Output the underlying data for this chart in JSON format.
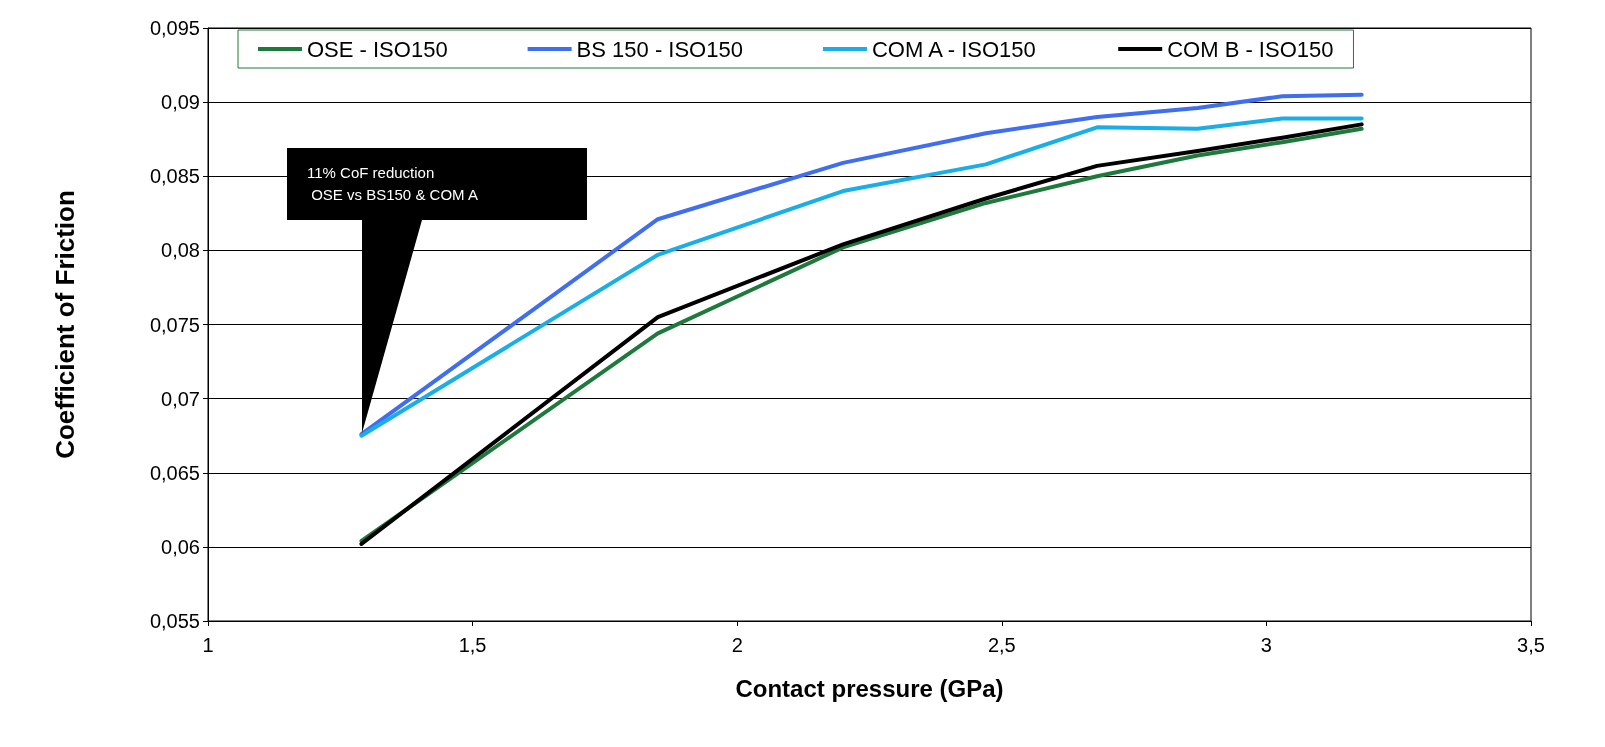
{
  "chart_data": {
    "type": "line",
    "xlabel": "Contact pressure (GPa)",
    "ylabel": "Coefficient of Friction",
    "x": [
      1.29,
      1.85,
      2.2,
      2.47,
      2.68,
      2.87,
      3.03,
      3.18
    ],
    "series": [
      {
        "name": "OSE - ISO150",
        "color": "#1e7a3c",
        "values": [
          0.0604,
          0.0744,
          0.0802,
          0.0832,
          0.085,
          0.0864,
          0.0873,
          0.0882
        ]
      },
      {
        "name": "BS 150 - ISO150",
        "color": "#3f6ef0",
        "values": [
          0.0676,
          0.0821,
          0.0859,
          0.0879,
          0.089,
          0.0896,
          0.0904,
          0.0905
        ]
      },
      {
        "name": "COM A - ISO150",
        "color": "#18aee8",
        "values": [
          0.0675,
          0.0797,
          0.084,
          0.0858,
          0.0883,
          0.0882,
          0.0889,
          0.0889
        ]
      },
      {
        "name": "COM B - ISO150",
        "color": "#000000",
        "values": [
          0.0602,
          0.0755,
          0.0804,
          0.0835,
          0.0857,
          0.0867,
          0.0876,
          0.0885
        ]
      }
    ],
    "xlim": [
      1,
      3.5
    ],
    "xticks": [
      1,
      {
        "value": 1.5,
        "label": "1,5"
      },
      2,
      {
        "value": 2.5,
        "label": "2,5"
      },
      3,
      {
        "value": 3.5,
        "label": "3,5"
      }
    ],
    "ylim": [
      0.055,
      0.095
    ],
    "yticks": [
      {
        "value": 0.055,
        "label": "0,055"
      },
      {
        "value": 0.06,
        "label": "0,06"
      },
      {
        "value": 0.065,
        "label": "0,065"
      },
      {
        "value": 0.07,
        "label": "0,07"
      },
      {
        "value": 0.075,
        "label": "0,075"
      },
      {
        "value": 0.08,
        "label": "0,08"
      },
      {
        "value": 0.085,
        "label": "0,085"
      },
      {
        "value": 0.09,
        "label": "0,09"
      },
      {
        "value": 0.095,
        "label": "0,095"
      }
    ],
    "annotations": [
      "11% CoF reduction\n OSE vs BS150 & COM A"
    ],
    "grid": "y",
    "legend": "top",
    "marker": "none",
    "line_style": "solid"
  }
}
